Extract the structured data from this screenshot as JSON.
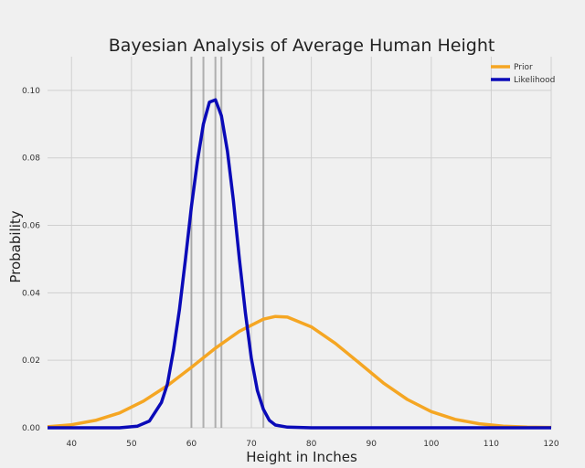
{
  "chart_data": {
    "type": "line",
    "title": "Bayesian Analysis of Average Human Height",
    "xlabel": "Height in Inches",
    "ylabel": "Probability",
    "xlim": [
      36,
      120
    ],
    "ylim": [
      0,
      0.11
    ],
    "xticks": [
      40,
      50,
      60,
      70,
      80,
      90,
      100,
      110,
      120
    ],
    "yticks": [
      0.0,
      0.02,
      0.04,
      0.06,
      0.08,
      0.1
    ],
    "ytick_labels": [
      "0.00",
      "0.02",
      "0.04",
      "0.06",
      "0.08",
      "0.10"
    ],
    "grid": true,
    "legend_position": "top-right",
    "observations": [
      60,
      62,
      64,
      65,
      72
    ],
    "series": [
      {
        "name": "Prior",
        "color": "#f5a623",
        "x": [
          36,
          40,
          44,
          48,
          52,
          56,
          60,
          64,
          68,
          72,
          74,
          76,
          80,
          84,
          88,
          92,
          96,
          100,
          104,
          108,
          112,
          116,
          120
        ],
        "y": [
          0.0003,
          0.0009,
          0.0022,
          0.0044,
          0.0079,
          0.0125,
          0.0179,
          0.0236,
          0.0286,
          0.0322,
          0.033,
          0.0328,
          0.0299,
          0.025,
          0.0192,
          0.0133,
          0.0084,
          0.0048,
          0.0025,
          0.0012,
          0.0005,
          0.0002,
          0.0001
        ]
      },
      {
        "name": "Likelihood",
        "color": "#0a0ab8",
        "x": [
          36,
          48,
          51,
          53,
          55,
          56,
          57,
          58,
          59,
          60,
          61,
          62,
          63,
          64,
          65,
          66,
          67,
          68,
          69,
          70,
          71,
          72,
          73,
          74,
          76,
          80,
          90,
          120
        ],
        "y": [
          0,
          0,
          0.0005,
          0.002,
          0.0075,
          0.013,
          0.023,
          0.035,
          0.05,
          0.0655,
          0.079,
          0.09,
          0.0965,
          0.0972,
          0.0925,
          0.082,
          0.0675,
          0.05,
          0.034,
          0.0205,
          0.011,
          0.0055,
          0.0022,
          0.0008,
          0.0002,
          0,
          0,
          0
        ]
      }
    ]
  }
}
